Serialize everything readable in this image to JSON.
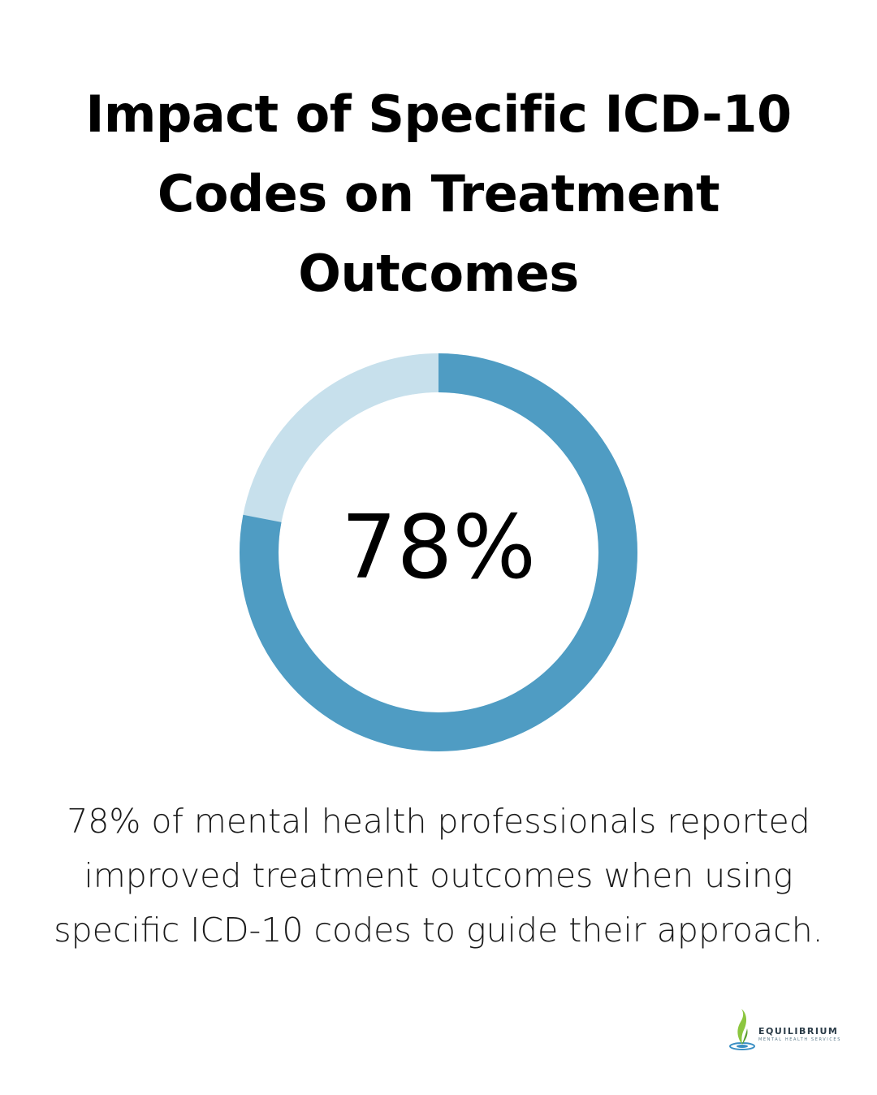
{
  "title_lines": [
    "Impact of Specific ICD-10",
    "Codes on Treatment",
    "Outcomes"
  ],
  "chart_data": {
    "type": "pie",
    "variant": "donut",
    "value_percent": 78,
    "remainder_percent": 22,
    "center_label": "78%",
    "colors": {
      "value": "#4f9cc3",
      "remainder": "#c7e0ec"
    }
  },
  "caption_lines": [
    "78% of mental health professionals reported",
    "improved treatment outcomes when using",
    "specific ICD-10 codes to guide their approach."
  ],
  "logo": {
    "name": "EQUILIBRIUM",
    "subtitle": "MENTAL HEALTH SERVICES",
    "icon": "sprout-drop-icon"
  }
}
